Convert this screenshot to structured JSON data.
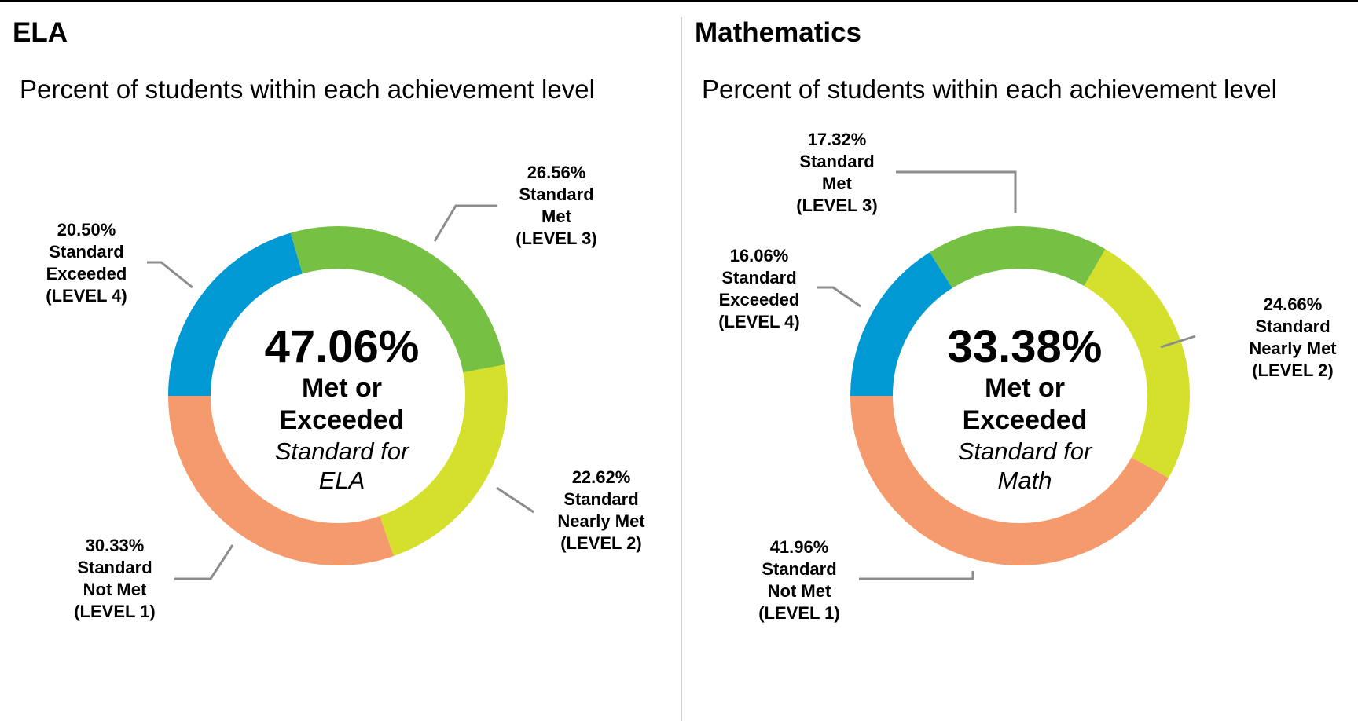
{
  "colors": {
    "level4": "#0099d4",
    "level3": "#76c043",
    "level2": "#d4e02b",
    "level1": "#f59a6c",
    "leader": "#8c8c8c"
  },
  "chart_data": [
    {
      "type": "pie",
      "subtype": "donut",
      "heading": "ELA",
      "title": "Percent of students within each achievement level",
      "center": {
        "value": "47.06%",
        "line1": "Met or",
        "line2": "Exceeded",
        "sub1": "Standard for",
        "sub2": "ELA"
      },
      "slices": [
        {
          "level": 3,
          "percent": "26.56%",
          "value": 26.56,
          "line1": "Standard",
          "line2": "Met",
          "line3": "(LEVEL 3)"
        },
        {
          "level": 2,
          "percent": "22.62%",
          "value": 22.62,
          "line1": "Standard",
          "line2": "Nearly Met",
          "line3": "(LEVEL 2)"
        },
        {
          "level": 1,
          "percent": "30.33%",
          "value": 30.33,
          "line1": "Standard",
          "line2": "Not Met",
          "line3": "(LEVEL 1)"
        },
        {
          "level": 4,
          "percent": "20.50%",
          "value": 20.5,
          "line1": "Standard",
          "line2": "Exceeded",
          "line3": "(LEVEL 4)"
        }
      ]
    },
    {
      "type": "pie",
      "subtype": "donut",
      "heading": "Mathematics",
      "title": "Percent of students within each achievement level",
      "center": {
        "value": "33.38%",
        "line1": "Met or",
        "line2": "Exceeded",
        "sub1": "Standard for",
        "sub2": "Math"
      },
      "slices": [
        {
          "level": 3,
          "percent": "17.32%",
          "value": 17.32,
          "line1": "Standard",
          "line2": "Met",
          "line3": "(LEVEL 3)"
        },
        {
          "level": 2,
          "percent": "24.66%",
          "value": 24.66,
          "line1": "Standard",
          "line2": "Nearly Met",
          "line3": "(LEVEL 2)"
        },
        {
          "level": 1,
          "percent": "41.96%",
          "value": 41.96,
          "line1": "Standard",
          "line2": "Not Met",
          "line3": "(LEVEL 1)"
        },
        {
          "level": 4,
          "percent": "16.06%",
          "value": 16.06,
          "line1": "Standard",
          "line2": "Exceeded",
          "line3": "(LEVEL 4)"
        }
      ]
    }
  ]
}
